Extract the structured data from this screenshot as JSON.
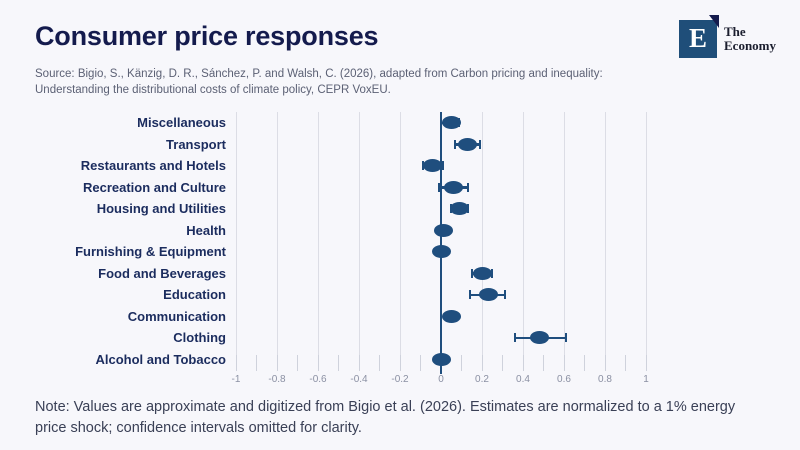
{
  "page": {
    "title": "Consumer price responses",
    "source_line1": "Source: Bigio, S., Känzig, D. R., Sánchez, P. and Walsh, C. (2026), adapted from Carbon pricing and inequality:",
    "source_line2": "Understanding the distributional costs of climate policy, CEPR VoxEU.",
    "note": "Note: Values are approximate and digitized from Bigio et al. (2026). Estimates are normalized to a 1% energy price shock; confidence intervals omitted for clarity."
  },
  "logo": {
    "letter": "E",
    "name_line1": "The",
    "name_line2": "Economy"
  },
  "colors": {
    "background": "#f7f7fb",
    "accent": "#1f4e7e",
    "title_text": "#141b4d",
    "category_label": "#1b2c5e",
    "gridline": "#dcdde5",
    "tick_label": "#8b90a3",
    "source_text": "#5c6175",
    "note_text": "#3a4056",
    "logo_square": "#1f4e79"
  },
  "chart_data": {
    "type": "scatter",
    "subtype": "horizontal-dot-plot-with-error-bars",
    "title": "Consumer price responses",
    "categories": [
      "Miscellaneous",
      "Transport",
      "Restaurants and Hotels",
      "Recreation and Culture",
      "Housing and Utilities",
      "Health",
      "Furnishing & Equipment",
      "Food and Beverages",
      "Education",
      "Communication",
      "Clothing",
      "Alcohol and Tobacco"
    ],
    "values": [
      0.05,
      0.13,
      -0.04,
      0.06,
      0.09,
      0.01,
      0.0,
      0.2,
      0.23,
      0.05,
      0.48,
      0.0
    ],
    "ci_low": [
      0.0,
      0.07,
      -0.09,
      -0.01,
      0.05,
      0.01,
      0.0,
      0.15,
      0.14,
      0.05,
      0.36,
      0.0
    ],
    "ci_high": [
      0.09,
      0.19,
      0.01,
      0.13,
      0.13,
      0.01,
      0.0,
      0.25,
      0.31,
      0.05,
      0.61,
      0.0
    ],
    "xlabel": "",
    "ylabel": "",
    "xlim": [
      -1,
      1
    ],
    "x_major_ticks": [
      -1,
      -0.8,
      -0.6,
      -0.4,
      -0.2,
      0,
      0.2,
      0.4,
      0.6,
      0.8,
      1
    ],
    "x_tick_labels": [
      "-1",
      "-0.8",
      "-0.6",
      "-0.4",
      "-0.2",
      "0",
      "0.2",
      "0.4",
      "0.6",
      "0.8",
      "1"
    ],
    "x_minor_step": 0.1,
    "grid": "vertical gridlines at major ticks",
    "zero_line": true,
    "legend": "none"
  }
}
